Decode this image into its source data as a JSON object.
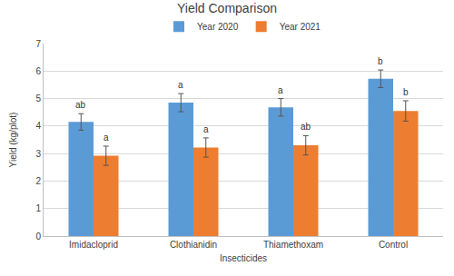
{
  "chart_data": {
    "type": "bar",
    "title": "Yield Comparison",
    "x_label": "Insecticides",
    "y_label": "Yield (kg/plot)",
    "categories": [
      "Imidacloprid",
      "Clothianidin",
      "Thiamethoxam",
      "Control"
    ],
    "series": [
      {
        "name": "Year 2020",
        "color": "#5b9bd5",
        "values": [
          4.15,
          4.85,
          4.68,
          5.72
        ],
        "errors": [
          0.3,
          0.33,
          0.32,
          0.32
        ],
        "annotations": [
          "ab",
          "a",
          "a",
          "b"
        ]
      },
      {
        "name": "Year 2021",
        "color": "#ed7d31",
        "values": [
          2.92,
          3.22,
          3.3,
          4.55
        ],
        "errors": [
          0.35,
          0.35,
          0.35,
          0.37
        ],
        "annotations": [
          "a",
          "a",
          "ab",
          "b"
        ]
      }
    ],
    "ylim": [
      0,
      7
    ],
    "yticks": [
      0,
      1,
      2,
      3,
      4,
      5,
      6,
      7
    ],
    "grid": true,
    "legend": "top"
  }
}
